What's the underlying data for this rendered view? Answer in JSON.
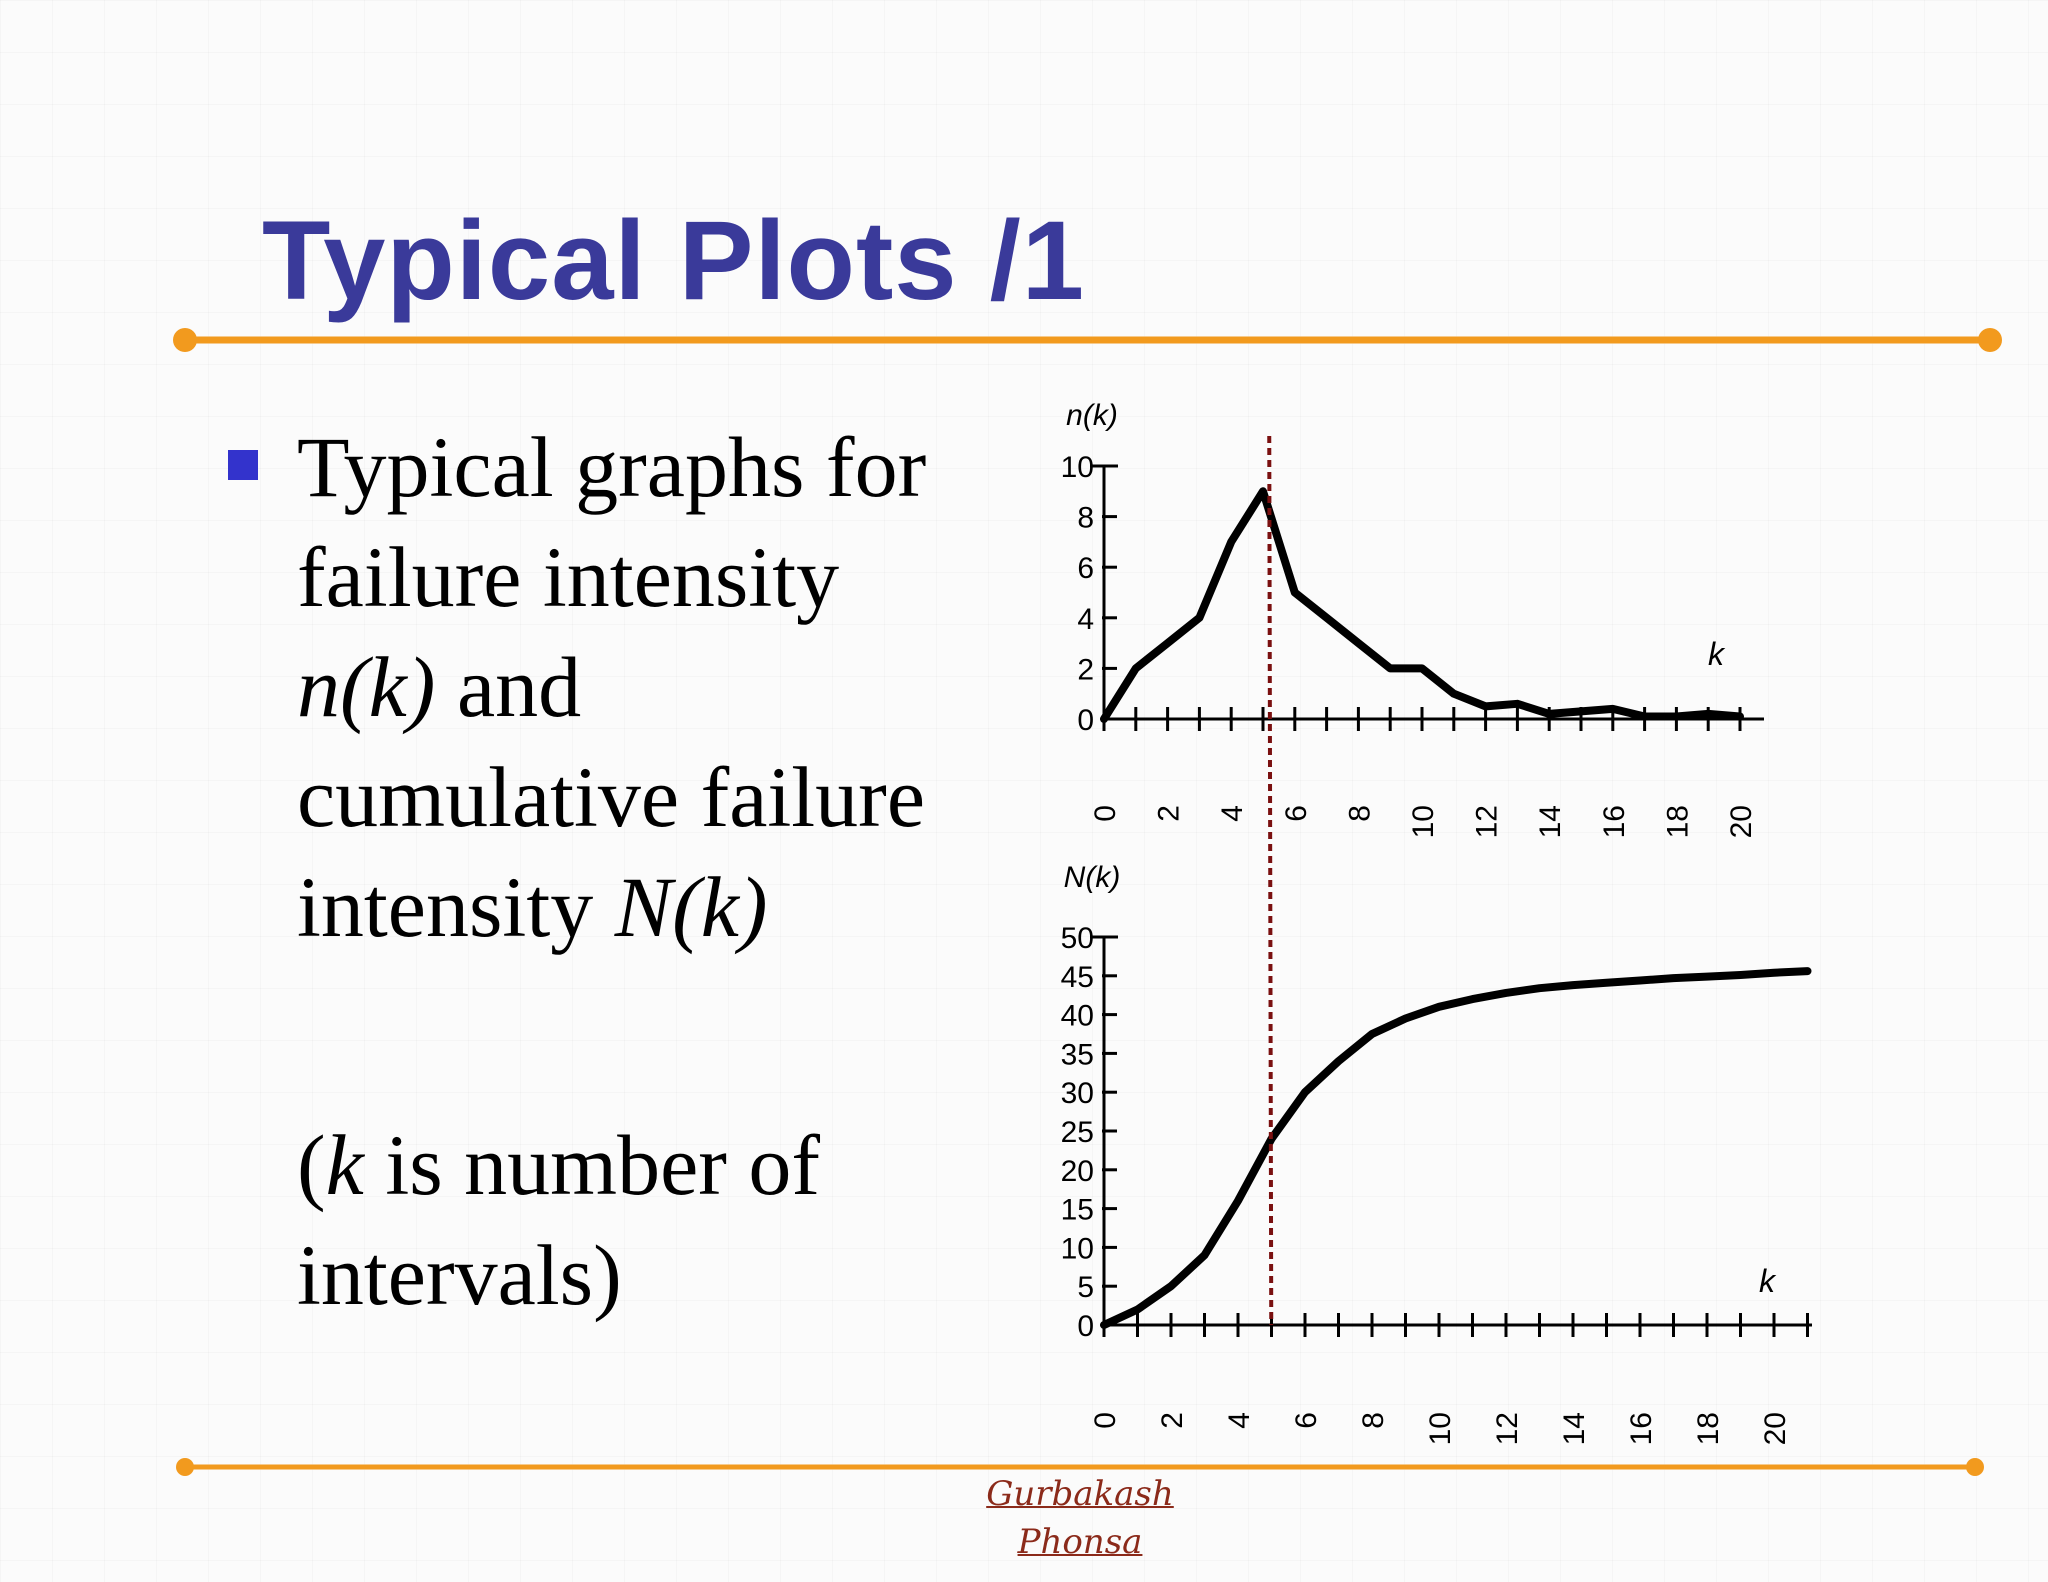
{
  "slide": {
    "title": "Typical Plots  /1",
    "bullet_lines": [
      "Typical graphs for",
      "failure intensity",
      "and",
      "cumulative failure",
      "intensity"
    ],
    "nk_term": "n(k)",
    "Nk_term": "N(k)",
    "note_open": "(",
    "note_k": "k",
    "note_rest": " is number of",
    "note_line2": "intervals)",
    "signature_line1": "Gurbakash",
    "signature_line2": "Phonsa"
  },
  "colors": {
    "title": "#3a3a9a",
    "rule": "#f29a1e",
    "bullet": "#3333cc",
    "dashed_marker": "#7a1010",
    "signature": "#8b2a1a"
  },
  "chart_data": [
    {
      "type": "line",
      "ylabel": "n(k)",
      "xlabel": "k",
      "x_ticks": [
        0,
        2,
        4,
        6,
        8,
        10,
        12,
        14,
        16,
        18,
        20
      ],
      "y_ticks": [
        0,
        2,
        4,
        6,
        8,
        10
      ],
      "xlim": [
        0,
        20
      ],
      "ylim": [
        0,
        10
      ],
      "x": [
        0,
        1,
        2,
        3,
        4,
        5,
        6,
        7,
        8,
        9,
        10,
        11,
        12,
        13,
        14,
        15,
        16,
        17,
        18,
        19,
        20
      ],
      "values": [
        0,
        2,
        3,
        4,
        7,
        9,
        5,
        4,
        3,
        2,
        2,
        1,
        0.5,
        0.6,
        0.2,
        0.3,
        0.4,
        0.1,
        0.1,
        0.2,
        0.1
      ],
      "marker_x": 5,
      "grid": false
    },
    {
      "type": "line",
      "ylabel": "N(k)",
      "xlabel": "k",
      "x_ticks": [
        0,
        2,
        4,
        6,
        8,
        10,
        12,
        14,
        16,
        18,
        20
      ],
      "y_ticks": [
        0,
        5,
        10,
        15,
        20,
        25,
        30,
        35,
        40,
        45,
        50
      ],
      "xlim": [
        0,
        21
      ],
      "ylim": [
        0,
        50
      ],
      "x": [
        0,
        1,
        2,
        3,
        4,
        5,
        6,
        7,
        8,
        9,
        10,
        11,
        12,
        13,
        14,
        15,
        16,
        17,
        18,
        19,
        20,
        21
      ],
      "values": [
        0,
        2,
        5,
        9,
        16,
        24,
        30,
        34,
        37.5,
        39.5,
        41,
        42,
        42.8,
        43.4,
        43.8,
        44.1,
        44.4,
        44.7,
        44.9,
        45.1,
        45.4,
        45.6
      ],
      "marker_x": 5,
      "grid": false
    }
  ]
}
